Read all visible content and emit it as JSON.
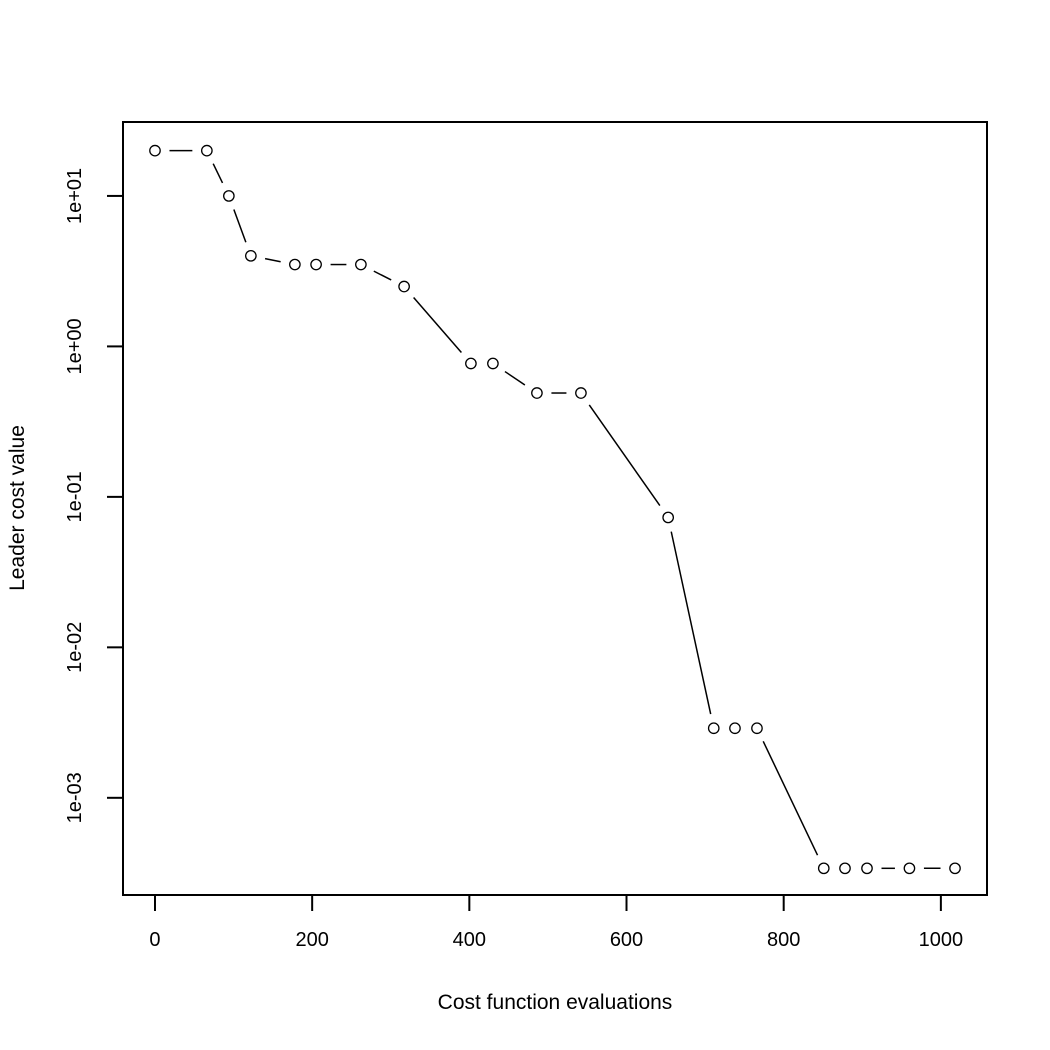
{
  "figure": {
    "background_color": "#ffffff",
    "stroke_color": "#000000",
    "marker_fill_color": "#ffffff"
  },
  "chart_data": {
    "type": "line",
    "plot_style": "points-with-gapped-segments (R type='b')",
    "marker": "open-circle",
    "title": "",
    "xlabel": "Cost function evaluations",
    "ylabel": "Leader cost value",
    "x": [
      0,
      66,
      94,
      122,
      178,
      205,
      262,
      317,
      402,
      430,
      486,
      542,
      653,
      711,
      738,
      766,
      851,
      878,
      906,
      960,
      1018
    ],
    "y": [
      20,
      20,
      10,
      4.0,
      3.5,
      3.5,
      3.5,
      2.5,
      0.77,
      0.77,
      0.49,
      0.49,
      0.073,
      0.0029,
      0.0029,
      0.0029,
      0.00034,
      0.00034,
      0.00034,
      0.00034,
      0.00034
    ],
    "x_ticks": [
      {
        "label": "0",
        "value": 0
      },
      {
        "label": "200",
        "value": 200
      },
      {
        "label": "400",
        "value": 400
      },
      {
        "label": "600",
        "value": 600
      },
      {
        "label": "800",
        "value": 800
      },
      {
        "label": "1000",
        "value": 1000
      }
    ],
    "y_ticks": [
      {
        "label": "1e+01",
        "value": 10
      },
      {
        "label": "1e+00",
        "value": 1
      },
      {
        "label": "1e-01",
        "value": 0.1
      },
      {
        "label": "1e-02",
        "value": 0.01
      },
      {
        "label": "1e-03",
        "value": 0.001
      }
    ],
    "xlim": [
      -40.7,
      1058.7
    ],
    "ylim": [
      0.000226,
      31
    ],
    "y_scale": "log10",
    "grid": false,
    "legend": null
  }
}
